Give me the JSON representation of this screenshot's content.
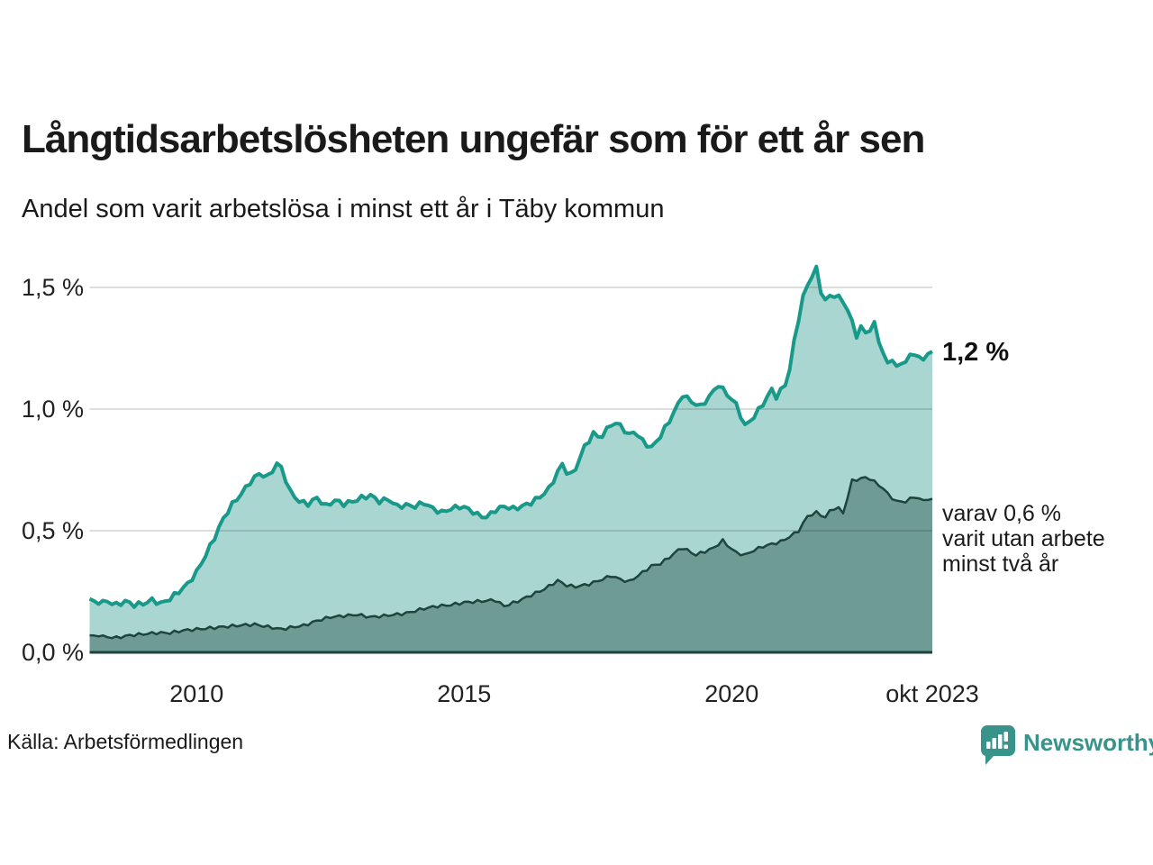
{
  "header": {
    "title": "Långtidsarbetslösheten ungefär som för ett år sen",
    "subtitle": "Andel som varit arbetslösa i minst ett år i Täby kommun"
  },
  "footer": {
    "source": "Källa: Arbetsförmedlingen",
    "brand": "Newsworthy"
  },
  "colors": {
    "line_primary": "#18998a",
    "fill_primary": "#a9d6d0",
    "line_secondary": "#1e443f",
    "fill_secondary": "#6f9b95",
    "gridline": "rgba(0,0,0,0.13)",
    "baseline": "#1e443f",
    "brand_teal": "#38948a",
    "text": "#1a1a1a"
  },
  "chart_data": {
    "type": "area",
    "title": "Långtidsarbetslösheten ungefär som för ett år sen",
    "subtitle": "Andel som varit arbetslösa i minst ett år i Täby kommun",
    "x_range": [
      2008.0,
      2023.75
    ],
    "y_range": [
      0,
      1.65
    ],
    "grid": true,
    "gridlines": [
      0.5,
      1.0,
      1.5
    ],
    "x_ticks": [
      {
        "label": "2010",
        "x": 2010
      },
      {
        "label": "2015",
        "x": 2015
      },
      {
        "label": "2020",
        "x": 2020
      },
      {
        "label": "okt 2023",
        "x": 2023.75
      }
    ],
    "y_ticks": [
      {
        "label": "1,5 %",
        "value": 1.5
      },
      {
        "label": "1,0 %",
        "value": 1.0
      },
      {
        "label": "0,5 %",
        "value": 0.5
      },
      {
        "label": "0,0 %",
        "value": 0.0
      }
    ],
    "annotations": {
      "end_label_main": "1,2 %",
      "end_label_secondary_lines": [
        "varav 0,6 %",
        "varit utan arbete",
        "minst två år"
      ]
    },
    "series": [
      {
        "name": "arbetslösa minst ett år",
        "end_value": 1.2,
        "points": [
          [
            2008.0,
            0.22
          ],
          [
            2008.17,
            0.2
          ],
          [
            2008.33,
            0.21
          ],
          [
            2008.5,
            0.195
          ],
          [
            2008.67,
            0.21
          ],
          [
            2008.83,
            0.195
          ],
          [
            2009.0,
            0.2
          ],
          [
            2009.17,
            0.215
          ],
          [
            2009.33,
            0.2
          ],
          [
            2009.5,
            0.22
          ],
          [
            2009.67,
            0.25
          ],
          [
            2009.83,
            0.28
          ],
          [
            2010.0,
            0.33
          ],
          [
            2010.17,
            0.4
          ],
          [
            2010.33,
            0.47
          ],
          [
            2010.5,
            0.55
          ],
          [
            2010.67,
            0.61
          ],
          [
            2010.83,
            0.65
          ],
          [
            2011.0,
            0.7
          ],
          [
            2011.17,
            0.735
          ],
          [
            2011.33,
            0.72
          ],
          [
            2011.5,
            0.775
          ],
          [
            2011.58,
            0.76
          ],
          [
            2011.75,
            0.66
          ],
          [
            2011.92,
            0.62
          ],
          [
            2012.08,
            0.61
          ],
          [
            2012.25,
            0.635
          ],
          [
            2012.42,
            0.6
          ],
          [
            2012.58,
            0.625
          ],
          [
            2012.75,
            0.61
          ],
          [
            2012.92,
            0.62
          ],
          [
            2013.08,
            0.635
          ],
          [
            2013.25,
            0.645
          ],
          [
            2013.42,
            0.62
          ],
          [
            2013.58,
            0.63
          ],
          [
            2013.75,
            0.6
          ],
          [
            2013.92,
            0.605
          ],
          [
            2014.08,
            0.6
          ],
          [
            2014.25,
            0.615
          ],
          [
            2014.42,
            0.59
          ],
          [
            2014.58,
            0.575
          ],
          [
            2014.75,
            0.59
          ],
          [
            2014.92,
            0.6
          ],
          [
            2015.08,
            0.59
          ],
          [
            2015.25,
            0.565
          ],
          [
            2015.42,
            0.555
          ],
          [
            2015.58,
            0.585
          ],
          [
            2015.75,
            0.6
          ],
          [
            2015.92,
            0.59
          ],
          [
            2016.08,
            0.6
          ],
          [
            2016.25,
            0.615
          ],
          [
            2016.42,
            0.64
          ],
          [
            2016.58,
            0.67
          ],
          [
            2016.83,
            0.775
          ],
          [
            2016.97,
            0.72
          ],
          [
            2017.08,
            0.755
          ],
          [
            2017.25,
            0.845
          ],
          [
            2017.42,
            0.9
          ],
          [
            2017.55,
            0.88
          ],
          [
            2017.75,
            0.94
          ],
          [
            2017.92,
            0.935
          ],
          [
            2018.08,
            0.89
          ],
          [
            2018.17,
            0.91
          ],
          [
            2018.33,
            0.87
          ],
          [
            2018.5,
            0.84
          ],
          [
            2018.67,
            0.89
          ],
          [
            2018.83,
            0.95
          ],
          [
            2019.0,
            1.02
          ],
          [
            2019.08,
            1.06
          ],
          [
            2019.25,
            1.03
          ],
          [
            2019.42,
            1.01
          ],
          [
            2019.58,
            1.05
          ],
          [
            2019.75,
            1.1
          ],
          [
            2019.92,
            1.06
          ],
          [
            2020.08,
            1.02
          ],
          [
            2020.25,
            0.93
          ],
          [
            2020.42,
            0.97
          ],
          [
            2020.58,
            1.02
          ],
          [
            2020.75,
            1.08
          ],
          [
            2020.83,
            1.05
          ],
          [
            2021.0,
            1.1
          ],
          [
            2021.08,
            1.16
          ],
          [
            2021.17,
            1.28
          ],
          [
            2021.33,
            1.46
          ],
          [
            2021.5,
            1.55
          ],
          [
            2021.58,
            1.58
          ],
          [
            2021.67,
            1.48
          ],
          [
            2021.75,
            1.45
          ],
          [
            2021.92,
            1.47
          ],
          [
            2022.0,
            1.46
          ],
          [
            2022.08,
            1.44
          ],
          [
            2022.17,
            1.41
          ],
          [
            2022.33,
            1.3
          ],
          [
            2022.42,
            1.34
          ],
          [
            2022.5,
            1.31
          ],
          [
            2022.67,
            1.35
          ],
          [
            2022.75,
            1.28
          ],
          [
            2022.92,
            1.18
          ],
          [
            2023.0,
            1.21
          ],
          [
            2023.08,
            1.17
          ],
          [
            2023.25,
            1.2
          ],
          [
            2023.42,
            1.23
          ],
          [
            2023.58,
            1.2
          ],
          [
            2023.67,
            1.23
          ],
          [
            2023.75,
            1.235
          ]
        ]
      },
      {
        "name": "varav arbetslösa minst två år",
        "end_value": 0.6,
        "points": [
          [
            2008.0,
            0.07
          ],
          [
            2008.25,
            0.065
          ],
          [
            2008.5,
            0.06
          ],
          [
            2008.75,
            0.07
          ],
          [
            2009.0,
            0.075
          ],
          [
            2009.25,
            0.08
          ],
          [
            2009.5,
            0.08
          ],
          [
            2009.75,
            0.09
          ],
          [
            2010.0,
            0.095
          ],
          [
            2010.25,
            0.1
          ],
          [
            2010.5,
            0.105
          ],
          [
            2010.75,
            0.11
          ],
          [
            2011.08,
            0.115
          ],
          [
            2011.33,
            0.105
          ],
          [
            2011.58,
            0.095
          ],
          [
            2011.83,
            0.105
          ],
          [
            2012.0,
            0.11
          ],
          [
            2012.25,
            0.13
          ],
          [
            2012.5,
            0.145
          ],
          [
            2012.75,
            0.15
          ],
          [
            2013.0,
            0.155
          ],
          [
            2013.25,
            0.145
          ],
          [
            2013.5,
            0.15
          ],
          [
            2013.9,
            0.16
          ],
          [
            2014.25,
            0.18
          ],
          [
            2014.5,
            0.19
          ],
          [
            2014.75,
            0.195
          ],
          [
            2015.0,
            0.205
          ],
          [
            2015.3,
            0.21
          ],
          [
            2015.58,
            0.215
          ],
          [
            2015.75,
            0.19
          ],
          [
            2016.0,
            0.21
          ],
          [
            2016.3,
            0.24
          ],
          [
            2016.5,
            0.26
          ],
          [
            2016.75,
            0.295
          ],
          [
            2016.92,
            0.275
          ],
          [
            2017.08,
            0.27
          ],
          [
            2017.33,
            0.28
          ],
          [
            2017.58,
            0.3
          ],
          [
            2017.75,
            0.315
          ],
          [
            2017.92,
            0.3
          ],
          [
            2018.08,
            0.29
          ],
          [
            2018.25,
            0.315
          ],
          [
            2018.5,
            0.355
          ],
          [
            2018.67,
            0.365
          ],
          [
            2018.83,
            0.39
          ],
          [
            2019.0,
            0.42
          ],
          [
            2019.08,
            0.43
          ],
          [
            2019.33,
            0.4
          ],
          [
            2019.5,
            0.415
          ],
          [
            2019.67,
            0.43
          ],
          [
            2019.83,
            0.46
          ],
          [
            2019.92,
            0.44
          ],
          [
            2020.08,
            0.41
          ],
          [
            2020.25,
            0.4
          ],
          [
            2020.42,
            0.42
          ],
          [
            2020.58,
            0.435
          ],
          [
            2020.75,
            0.445
          ],
          [
            2020.92,
            0.455
          ],
          [
            2021.08,
            0.475
          ],
          [
            2021.25,
            0.5
          ],
          [
            2021.42,
            0.56
          ],
          [
            2021.58,
            0.575
          ],
          [
            2021.75,
            0.555
          ],
          [
            2021.83,
            0.58
          ],
          [
            2021.97,
            0.6
          ],
          [
            2022.08,
            0.57
          ],
          [
            2022.25,
            0.705
          ],
          [
            2022.42,
            0.715
          ],
          [
            2022.55,
            0.72
          ],
          [
            2022.67,
            0.7
          ],
          [
            2022.83,
            0.675
          ],
          [
            2022.92,
            0.65
          ],
          [
            2023.08,
            0.62
          ],
          [
            2023.25,
            0.62
          ],
          [
            2023.42,
            0.64
          ],
          [
            2023.58,
            0.625
          ],
          [
            2023.75,
            0.63
          ]
        ]
      }
    ],
    "source": "Källa: Arbetsförmedlingen"
  }
}
